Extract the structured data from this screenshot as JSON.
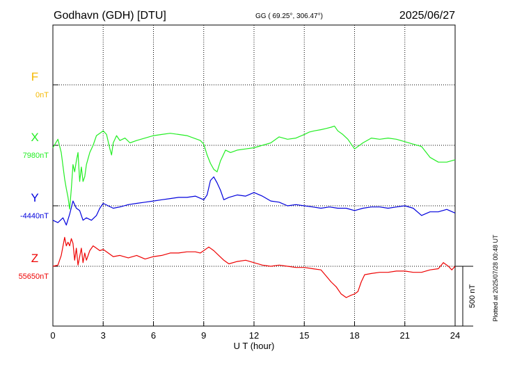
{
  "header": {
    "station": "Godhavn (GDH)  [DTU]",
    "coords": "GG ( 69.25°, 306.47°)",
    "date": "2025/06/27"
  },
  "plotted_note": "Plotted at 2025/07/28 00:48 UT",
  "scale_bar": {
    "label": "500 nT",
    "value_nT": 500
  },
  "colors": {
    "F": "#f5b800",
    "X": "#22ee22",
    "Y": "#0000dd",
    "Z": "#ee0000"
  },
  "chart_data": {
    "type": "line",
    "xlabel": "U T (hour)",
    "xlim": [
      0,
      24
    ],
    "xticks": [
      "0",
      "3",
      "6",
      "9",
      "12",
      "15",
      "18",
      "21",
      "24"
    ],
    "grid": true,
    "units_per_band_nT": 500,
    "series": [
      {
        "name": "F",
        "baseline_label": "0nT",
        "baseline_nT": 0,
        "x": [],
        "values": []
      },
      {
        "name": "X",
        "baseline_label": "7980nT",
        "baseline_nT": 7980,
        "x": [
          0,
          0.3,
          0.5,
          0.7,
          0.8,
          0.9,
          1.0,
          1.1,
          1.2,
          1.3,
          1.4,
          1.5,
          1.6,
          1.7,
          1.8,
          1.9,
          2.0,
          2.2,
          2.4,
          2.6,
          2.8,
          3.0,
          3.2,
          3.4,
          3.5,
          3.6,
          3.8,
          4.0,
          4.3,
          4.6,
          5.0,
          5.5,
          6.0,
          6.5,
          7.0,
          7.5,
          8.0,
          8.4,
          8.8,
          9.0,
          9.2,
          9.4,
          9.6,
          9.8,
          10.0,
          10.3,
          10.6,
          11.0,
          11.5,
          12.0,
          12.5,
          13.0,
          13.5,
          14.0,
          14.5,
          15.0,
          15.3,
          15.6,
          16.0,
          16.3,
          16.6,
          16.8,
          17.0,
          17.3,
          17.6,
          18.0,
          18.5,
          19.0,
          19.5,
          20.0,
          20.5,
          21.0,
          21.5,
          22.0,
          22.5,
          23.0,
          23.5,
          24.0
        ],
        "values": [
          7960,
          8030,
          7920,
          7700,
          7620,
          7550,
          7450,
          7620,
          7820,
          7760,
          7850,
          7920,
          7680,
          7800,
          7680,
          7720,
          7820,
          7920,
          7980,
          8060,
          8080,
          8100,
          8070,
          7950,
          7900,
          8000,
          8060,
          8020,
          8040,
          8000,
          8020,
          8040,
          8060,
          8070,
          8080,
          8070,
          8060,
          8040,
          8020,
          7990,
          7900,
          7830,
          7780,
          7760,
          7850,
          7940,
          7920,
          7940,
          7950,
          7960,
          7980,
          8000,
          8050,
          8030,
          8040,
          8070,
          8090,
          8100,
          8110,
          8120,
          8130,
          8140,
          8100,
          8070,
          8030,
          7950,
          8000,
          8040,
          8030,
          8040,
          8030,
          8010,
          7990,
          7970,
          7880,
          7840,
          7840,
          7860
        ]
      },
      {
        "name": "Y",
        "baseline_label": "-4440nT",
        "baseline_nT": -4440,
        "x": [
          0,
          0.3,
          0.6,
          0.8,
          1.0,
          1.2,
          1.4,
          1.6,
          1.8,
          2.0,
          2.3,
          2.6,
          2.8,
          3.0,
          3.3,
          3.6,
          4.0,
          4.5,
          5.0,
          5.5,
          6.0,
          6.5,
          7.0,
          7.5,
          8.0,
          8.5,
          9.0,
          9.2,
          9.4,
          9.6,
          9.8,
          10.0,
          10.2,
          10.5,
          11.0,
          11.5,
          12.0,
          12.5,
          13.0,
          13.5,
          14.0,
          14.5,
          15.0,
          15.5,
          16.0,
          16.5,
          17.0,
          17.5,
          18.0,
          18.5,
          19.0,
          19.5,
          20.0,
          20.5,
          21.0,
          21.5,
          22.0,
          22.5,
          23.0,
          23.5,
          24.0
        ],
        "values": [
          -4560,
          -4580,
          -4540,
          -4600,
          -4510,
          -4400,
          -4460,
          -4480,
          -4560,
          -4540,
          -4560,
          -4520,
          -4460,
          -4420,
          -4440,
          -4460,
          -4450,
          -4430,
          -4420,
          -4410,
          -4400,
          -4390,
          -4380,
          -4370,
          -4370,
          -4360,
          -4390,
          -4350,
          -4230,
          -4200,
          -4250,
          -4310,
          -4390,
          -4370,
          -4350,
          -4360,
          -4330,
          -4360,
          -4400,
          -4410,
          -4440,
          -4430,
          -4440,
          -4450,
          -4460,
          -4450,
          -4460,
          -4460,
          -4480,
          -4460,
          -4450,
          -4450,
          -4460,
          -4450,
          -4440,
          -4460,
          -4520,
          -4490,
          -4490,
          -4470,
          -4500
        ]
      },
      {
        "name": "Z",
        "baseline_label": "55650nT",
        "baseline_nT": 55650,
        "x": [
          0,
          0.3,
          0.5,
          0.7,
          0.8,
          0.9,
          1.0,
          1.1,
          1.2,
          1.3,
          1.4,
          1.5,
          1.6,
          1.7,
          1.8,
          1.9,
          2.0,
          2.2,
          2.4,
          2.6,
          2.8,
          3.0,
          3.3,
          3.6,
          4.0,
          4.5,
          5.0,
          5.5,
          6.0,
          6.5,
          7.0,
          7.5,
          8.0,
          8.5,
          8.8,
          9.0,
          9.3,
          9.6,
          9.9,
          10.2,
          10.5,
          11.0,
          11.5,
          12.0,
          12.5,
          13.0,
          13.5,
          14.0,
          14.5,
          15.0,
          15.5,
          16.0,
          16.3,
          16.6,
          16.9,
          17.2,
          17.5,
          17.8,
          18.0,
          18.2,
          18.4,
          18.6,
          19.0,
          19.5,
          20.0,
          20.5,
          21.0,
          21.5,
          22.0,
          22.5,
          23.0,
          23.3,
          23.6,
          23.8,
          24.0
        ],
        "values": [
          55650,
          55660,
          55740,
          55890,
          55820,
          55850,
          55820,
          55880,
          55840,
          55700,
          55800,
          55660,
          55730,
          55800,
          55680,
          55760,
          55700,
          55780,
          55820,
          55800,
          55780,
          55790,
          55760,
          55730,
          55740,
          55720,
          55740,
          55710,
          55730,
          55740,
          55760,
          55760,
          55770,
          55770,
          55760,
          55780,
          55810,
          55780,
          55740,
          55700,
          55670,
          55690,
          55700,
          55680,
          55660,
          55650,
          55660,
          55650,
          55640,
          55640,
          55630,
          55620,
          55570,
          55520,
          55480,
          55420,
          55390,
          55410,
          55420,
          55440,
          55520,
          55580,
          55590,
          55600,
          55600,
          55610,
          55610,
          55600,
          55600,
          55620,
          55630,
          55680,
          55650,
          55620,
          55650
        ]
      }
    ]
  }
}
